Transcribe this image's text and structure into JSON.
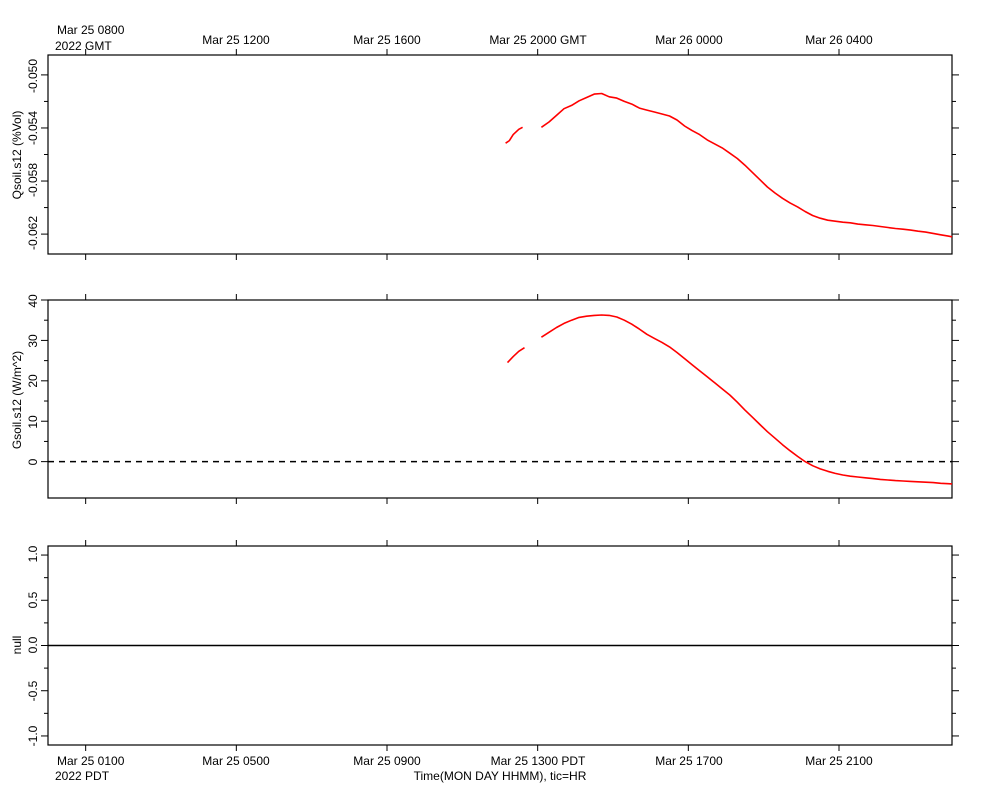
{
  "top_axis": {
    "first_label": "Mar 25 0800",
    "first_label_line2": "2022 GMT",
    "labels": [
      "Mar 25 1200",
      "Mar 25 1600",
      "Mar 25 2000 GMT",
      "Mar 26 0000",
      "Mar 26 0400"
    ]
  },
  "bottom_axis": {
    "first_label": "Mar 25 0100",
    "first_label_line2": "2022 PDT",
    "labels": [
      "Mar 25 0500",
      "Mar 25 0900",
      "Mar 25 1300 PDT",
      "Mar 25 1700",
      "Mar 25 2100"
    ],
    "xlabel": "Time(MON DAY HHMM), tic=HR"
  },
  "colors": {
    "series": "#ff0000",
    "axes": "#000000"
  },
  "chart_data": [
    {
      "type": "line",
      "ylabel": "Qsoil.s12 (%Vol)",
      "x_unit": "hours since Mar 25 0000 PDT",
      "xlim": [
        0.0,
        24.0
      ],
      "ylim": [
        -0.0635,
        -0.0485
      ],
      "yticks": [
        "-0.062",
        "-0.058",
        "-0.054",
        "-0.050"
      ],
      "segments": [
        {
          "x": [
            12.15,
            12.25,
            12.35,
            12.5,
            12.6
          ],
          "y": [
            -0.05515,
            -0.05495,
            -0.0545,
            -0.0541,
            -0.05395
          ]
        },
        {
          "x": [
            13.1,
            13.3,
            13.5,
            13.7,
            13.9,
            14.1,
            14.3,
            14.5,
            14.7,
            14.9,
            15.1,
            15.3,
            15.5,
            15.7,
            15.9,
            16.1,
            16.3,
            16.5,
            16.7,
            16.9,
            17.1,
            17.3,
            17.5,
            17.7,
            17.9,
            18.1,
            18.3,
            18.5,
            18.7,
            18.9,
            19.1,
            19.3,
            19.5,
            19.7,
            19.9,
            20.1,
            20.3,
            20.5,
            20.7,
            20.9,
            21.1,
            21.3,
            21.5,
            21.7,
            21.9,
            22.1,
            22.3,
            22.5,
            22.7,
            22.9,
            23.1,
            23.3,
            23.5,
            23.7,
            23.9,
            24.0
          ],
          "y": [
            -0.05395,
            -0.05355,
            -0.05305,
            -0.05255,
            -0.0523,
            -0.05195,
            -0.0517,
            -0.05145,
            -0.0514,
            -0.05165,
            -0.05175,
            -0.052,
            -0.0522,
            -0.0525,
            -0.05265,
            -0.0528,
            -0.05295,
            -0.0531,
            -0.0534,
            -0.05385,
            -0.0542,
            -0.0545,
            -0.0549,
            -0.0552,
            -0.0555,
            -0.0559,
            -0.0563,
            -0.0568,
            -0.05735,
            -0.0579,
            -0.05845,
            -0.0589,
            -0.0593,
            -0.05965,
            -0.05995,
            -0.0603,
            -0.0606,
            -0.0608,
            -0.06095,
            -0.06103,
            -0.0611,
            -0.06115,
            -0.06125,
            -0.0613,
            -0.06135,
            -0.06143,
            -0.0615,
            -0.06158,
            -0.06163,
            -0.0617,
            -0.06178,
            -0.06185,
            -0.06195,
            -0.06205,
            -0.06215,
            -0.0622
          ]
        }
      ]
    },
    {
      "type": "line",
      "ylabel": "Gsoil.s12 (W/m^2)",
      "x_unit": "hours since Mar 25 0000 PDT",
      "xlim": [
        0.0,
        24.0
      ],
      "ylim": [
        -9,
        40
      ],
      "yticks": [
        "0",
        "10",
        "20",
        "30",
        "40"
      ],
      "reference_line": {
        "y": 0,
        "style": "dashed"
      },
      "segments": [
        {
          "x": [
            12.2,
            12.35,
            12.5,
            12.65
          ],
          "y": [
            24.5,
            26.0,
            27.3,
            28.2
          ]
        },
        {
          "x": [
            13.1,
            13.3,
            13.5,
            13.7,
            13.9,
            14.1,
            14.3,
            14.5,
            14.7,
            14.9,
            15.1,
            15.3,
            15.5,
            15.7,
            15.9,
            16.1,
            16.3,
            16.5,
            16.7,
            16.9,
            17.1,
            17.3,
            17.5,
            17.7,
            17.9,
            18.1,
            18.3,
            18.5,
            18.7,
            18.9,
            19.1,
            19.3,
            19.5,
            19.7,
            19.9,
            20.1,
            20.3,
            20.5,
            20.7,
            20.9,
            21.1,
            21.3,
            21.5,
            21.7,
            21.9,
            22.1,
            22.3,
            22.5,
            22.7,
            22.9,
            23.1,
            23.3,
            23.5,
            23.7,
            23.9,
            24.0
          ],
          "y": [
            30.8,
            32.0,
            33.2,
            34.2,
            35.0,
            35.7,
            36.0,
            36.2,
            36.3,
            36.2,
            35.8,
            35.0,
            34.0,
            32.8,
            31.5,
            30.5,
            29.5,
            28.4,
            27.0,
            25.5,
            24.0,
            22.5,
            21.0,
            19.5,
            18.0,
            16.5,
            14.7,
            12.8,
            11.0,
            9.2,
            7.4,
            5.8,
            4.2,
            2.7,
            1.3,
            0.0,
            -1.0,
            -1.8,
            -2.4,
            -2.9,
            -3.3,
            -3.6,
            -3.8,
            -4.0,
            -4.2,
            -4.4,
            -4.55,
            -4.7,
            -4.8,
            -4.9,
            -5.0,
            -5.1,
            -5.2,
            -5.35,
            -5.45,
            -5.5
          ]
        }
      ]
    },
    {
      "type": "line",
      "ylabel": "null",
      "x_unit": "hours since Mar 25 0000 PDT",
      "xlim": [
        0.0,
        24.0
      ],
      "ylim": [
        -1.1,
        1.1
      ],
      "yticks": [
        "-1.0",
        "-0.5",
        "0.0",
        "0.5",
        "1.0"
      ],
      "reference_line": {
        "y": 0,
        "style": "solid"
      },
      "segments": []
    }
  ]
}
